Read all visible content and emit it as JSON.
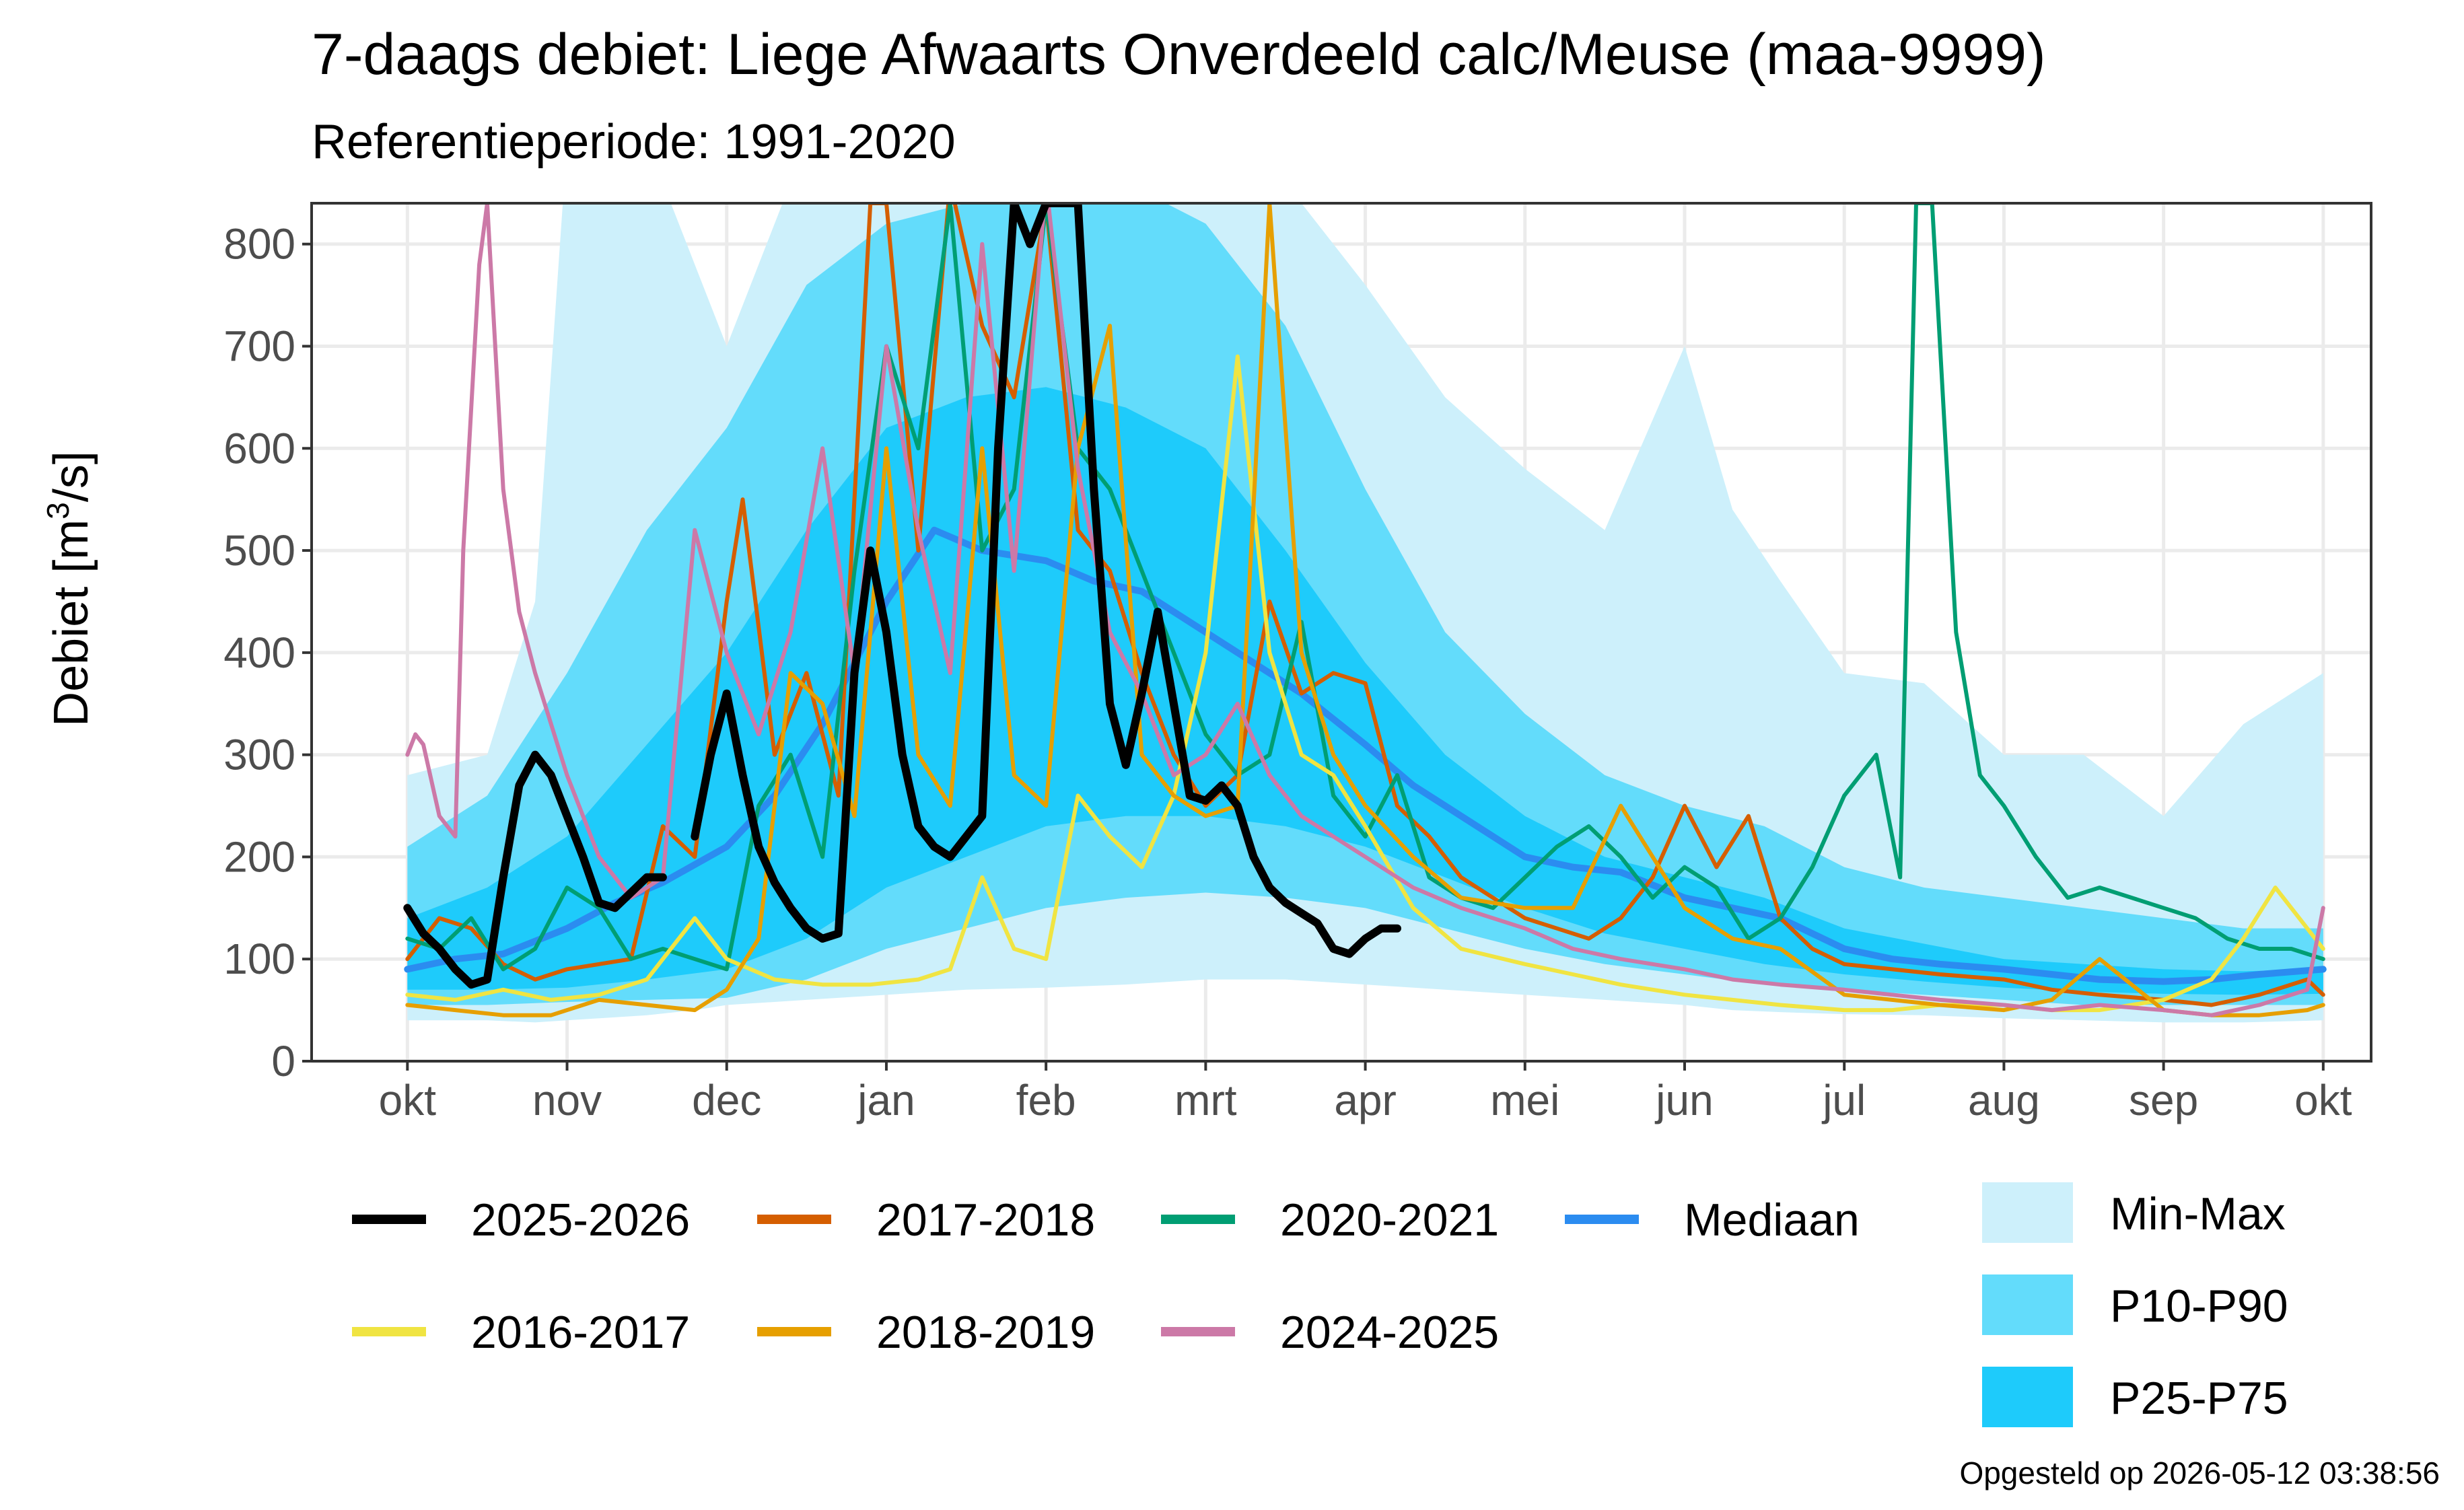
{
  "chart_data": {
    "type": "line",
    "title": "7-daags debiet: Liege Afwaarts Onverdeeld calc/Meuse (maa-9999)",
    "subtitle": "Referentieperiode: 1991-2020",
    "ylabel_prefix": "Debiet [m",
    "ylabel_sup": "3",
    "ylabel_suffix": "/s]",
    "xlabel": "",
    "ylim": [
      0,
      840
    ],
    "xlim": [
      -0.6,
      12.3
    ],
    "y_ticks": [
      "0",
      "100",
      "200",
      "300",
      "400",
      "500",
      "600",
      "700",
      "800"
    ],
    "x_tick_labels": [
      "okt",
      "nov",
      "dec",
      "jan",
      "feb",
      "mrt",
      "apr",
      "mei",
      "jun",
      "jul",
      "aug",
      "sep",
      "okt"
    ],
    "grid": true,
    "legend_position": "bottom",
    "footer": "Opgesteld op 2026-05-12 03:38:56",
    "x_unit": "months since 1 okt",
    "bands": [
      {
        "name": "Min-Max",
        "color": "#cdf0fb",
        "x": [
          0,
          0.5,
          0.8,
          1,
          1.5,
          1.8,
          2,
          2.5,
          3,
          3.5,
          4,
          4.5,
          5,
          5.5,
          6,
          6.5,
          7,
          7.5,
          8,
          8.3,
          8.6,
          9,
          9.5,
          10,
          10.5,
          11,
          11.5,
          12
        ],
        "lower": [
          40,
          40,
          38,
          40,
          45,
          50,
          55,
          60,
          65,
          70,
          72,
          75,
          80,
          80,
          75,
          70,
          65,
          60,
          55,
          50,
          48,
          46,
          45,
          42,
          40,
          38,
          38,
          40
        ],
        "upper": [
          280,
          300,
          450,
          900,
          900,
          780,
          700,
          900,
          900,
          900,
          900,
          900,
          900,
          860,
          760,
          650,
          580,
          520,
          700,
          540,
          470,
          380,
          370,
          300,
          300,
          240,
          330,
          380
        ]
      },
      {
        "name": "P10-P90",
        "color": "#63dcfb",
        "x": [
          0,
          0.5,
          1,
          1.5,
          2,
          2.5,
          3,
          3.5,
          4,
          4.5,
          5,
          5.5,
          6,
          6.5,
          7,
          7.5,
          8,
          8.5,
          9,
          9.5,
          10,
          10.5,
          11,
          11.5,
          12
        ],
        "lower": [
          55,
          55,
          58,
          60,
          62,
          80,
          110,
          130,
          150,
          160,
          165,
          160,
          150,
          130,
          110,
          95,
          85,
          75,
          70,
          65,
          60,
          55,
          55,
          55,
          55
        ],
        "upper": [
          210,
          260,
          380,
          520,
          620,
          760,
          820,
          840,
          860,
          860,
          820,
          720,
          560,
          420,
          340,
          280,
          250,
          230,
          190,
          170,
          160,
          150,
          140,
          130,
          130
        ]
      },
      {
        "name": "P25-P75",
        "color": "#1ecbfb",
        "x": [
          0,
          0.5,
          1,
          1.5,
          2,
          2.5,
          3,
          3.5,
          4,
          4.5,
          5,
          5.5,
          6,
          6.5,
          7,
          7.5,
          8,
          8.5,
          9,
          9.5,
          10,
          10.5,
          11,
          11.5,
          12
        ],
        "lower": [
          70,
          70,
          72,
          80,
          90,
          120,
          170,
          200,
          230,
          240,
          240,
          230,
          210,
          180,
          150,
          125,
          110,
          95,
          85,
          78,
          72,
          68,
          66,
          65,
          66
        ],
        "upper": [
          140,
          170,
          220,
          310,
          400,
          520,
          620,
          650,
          660,
          640,
          600,
          500,
          390,
          300,
          240,
          200,
          180,
          160,
          130,
          115,
          100,
          95,
          90,
          88,
          90
        ]
      }
    ],
    "series": [
      {
        "name": "Mediaan",
        "color": "#2b8cf0",
        "width": 10,
        "x": [
          0,
          0.3,
          0.6,
          1,
          1.3,
          1.6,
          2,
          2.3,
          2.6,
          3,
          3.3,
          3.6,
          4,
          4.3,
          4.6,
          5,
          5.3,
          5.6,
          6,
          6.3,
          6.6,
          7,
          7.3,
          7.6,
          8,
          8.3,
          8.6,
          9,
          9.3,
          9.6,
          10,
          10.3,
          10.6,
          11,
          11.3,
          11.6,
          12
        ],
        "y": [
          90,
          100,
          105,
          130,
          155,
          175,
          210,
          260,
          330,
          450,
          520,
          500,
          490,
          470,
          460,
          420,
          390,
          360,
          310,
          270,
          240,
          200,
          190,
          185,
          160,
          150,
          140,
          110,
          100,
          95,
          90,
          85,
          80,
          78,
          80,
          85,
          90
        ]
      },
      {
        "name": "2017-2018",
        "color": "#d55e00",
        "width": 6,
        "x": [
          0,
          0.2,
          0.4,
          0.6,
          0.8,
          1,
          1.2,
          1.4,
          1.6,
          1.8,
          2,
          2.1,
          2.3,
          2.5,
          2.7,
          2.9,
          3,
          3.2,
          3.4,
          3.6,
          3.8,
          4,
          4.2,
          4.4,
          4.6,
          4.8,
          5,
          5.2,
          5.4,
          5.6,
          5.8,
          6,
          6.2,
          6.4,
          6.6,
          6.8,
          7,
          7.2,
          7.4,
          7.6,
          7.8,
          8,
          8.2,
          8.4,
          8.6,
          8.8,
          9,
          9.3,
          9.6,
          10,
          10.3,
          10.6,
          11,
          11.3,
          11.6,
          11.9,
          12
        ],
        "y": [
          100,
          140,
          130,
          95,
          80,
          90,
          95,
          100,
          230,
          200,
          450,
          550,
          300,
          380,
          260,
          840,
          840,
          500,
          860,
          720,
          650,
          840,
          520,
          480,
          380,
          300,
          250,
          280,
          450,
          360,
          380,
          370,
          250,
          220,
          180,
          160,
          140,
          130,
          120,
          140,
          180,
          250,
          190,
          240,
          140,
          110,
          95,
          90,
          85,
          80,
          70,
          65,
          60,
          55,
          65,
          80,
          65
        ]
      },
      {
        "name": "2020-2021",
        "color": "#009e73",
        "width": 6,
        "x": [
          0,
          0.2,
          0.4,
          0.6,
          0.8,
          1,
          1.2,
          1.4,
          1.6,
          1.8,
          2,
          2.2,
          2.4,
          2.6,
          2.8,
          3,
          3.2,
          3.4,
          3.6,
          3.8,
          4,
          4.2,
          4.4,
          4.6,
          4.8,
          5,
          5.2,
          5.4,
          5.6,
          5.8,
          6,
          6.2,
          6.4,
          6.6,
          6.8,
          7,
          7.2,
          7.4,
          7.6,
          7.8,
          8,
          8.2,
          8.4,
          8.6,
          8.8,
          9,
          9.2,
          9.35,
          9.45,
          9.55,
          9.7,
          9.85,
          10,
          10.2,
          10.4,
          10.6,
          10.8,
          11,
          11.2,
          11.4,
          11.6,
          11.8,
          12
        ],
        "y": [
          120,
          110,
          140,
          90,
          110,
          170,
          150,
          100,
          110,
          100,
          90,
          250,
          300,
          200,
          480,
          700,
          600,
          840,
          500,
          560,
          840,
          600,
          560,
          480,
          400,
          320,
          280,
          300,
          430,
          260,
          220,
          280,
          180,
          160,
          150,
          180,
          210,
          230,
          200,
          160,
          190,
          170,
          120,
          140,
          190,
          260,
          300,
          180,
          840,
          840,
          420,
          280,
          250,
          200,
          160,
          170,
          160,
          150,
          140,
          120,
          110,
          110,
          100
        ]
      },
      {
        "name": "2016-2017",
        "color": "#f0e442",
        "width": 6,
        "x": [
          0,
          0.3,
          0.6,
          0.9,
          1.2,
          1.5,
          1.8,
          2,
          2.3,
          2.6,
          2.9,
          3.2,
          3.4,
          3.6,
          3.8,
          4,
          4.2,
          4.4,
          4.6,
          4.8,
          5,
          5.2,
          5.4,
          5.6,
          5.8,
          6,
          6.3,
          6.6,
          7,
          7.3,
          7.6,
          8,
          8.3,
          8.6,
          9,
          9.3,
          9.6,
          10,
          10.3,
          10.6,
          11,
          11.3,
          11.5,
          11.7,
          11.9,
          12
        ],
        "y": [
          65,
          60,
          70,
          60,
          65,
          80,
          140,
          100,
          80,
          75,
          75,
          80,
          90,
          180,
          110,
          100,
          260,
          220,
          190,
          260,
          400,
          690,
          400,
          300,
          280,
          230,
          150,
          110,
          95,
          85,
          75,
          65,
          60,
          55,
          50,
          50,
          55,
          55,
          50,
          50,
          60,
          80,
          120,
          170,
          130,
          110
        ]
      },
      {
        "name": "2018-2019",
        "color": "#e69f00",
        "width": 6,
        "x": [
          0,
          0.3,
          0.6,
          0.9,
          1.2,
          1.5,
          1.8,
          2,
          2.2,
          2.4,
          2.6,
          2.8,
          3,
          3.2,
          3.4,
          3.6,
          3.8,
          4,
          4.2,
          4.4,
          4.6,
          4.8,
          5,
          5.2,
          5.4,
          5.6,
          5.8,
          6,
          6.3,
          6.6,
          7,
          7.3,
          7.6,
          8,
          8.3,
          8.6,
          9,
          9.3,
          9.6,
          10,
          10.3,
          10.6,
          11,
          11.3,
          11.6,
          11.9,
          12
        ],
        "y": [
          55,
          50,
          45,
          45,
          60,
          55,
          50,
          70,
          120,
          380,
          350,
          240,
          600,
          300,
          250,
          600,
          280,
          250,
          600,
          720,
          300,
          260,
          240,
          250,
          840,
          400,
          300,
          250,
          200,
          160,
          150,
          150,
          250,
          150,
          120,
          110,
          65,
          60,
          55,
          50,
          60,
          100,
          50,
          45,
          45,
          50,
          55
        ]
      },
      {
        "name": "2024-2025",
        "color": "#cc79a7",
        "width": 6,
        "x": [
          0,
          0.05,
          0.1,
          0.2,
          0.3,
          0.35,
          0.45,
          0.5,
          0.6,
          0.7,
          0.8,
          1,
          1.2,
          1.4,
          1.6,
          1.8,
          2,
          2.2,
          2.4,
          2.6,
          2.8,
          3,
          3.2,
          3.4,
          3.6,
          3.8,
          4,
          4.2,
          4.4,
          4.6,
          4.8,
          5,
          5.2,
          5.4,
          5.6,
          5.8,
          6,
          6.3,
          6.6,
          7,
          7.3,
          7.6,
          8,
          8.3,
          8.6,
          9,
          9.3,
          9.6,
          10,
          10.3,
          10.6,
          11,
          11.3,
          11.6,
          11.9,
          12
        ],
        "y": [
          300,
          320,
          310,
          240,
          220,
          500,
          780,
          840,
          560,
          440,
          380,
          280,
          200,
          160,
          180,
          520,
          400,
          320,
          420,
          600,
          380,
          700,
          520,
          380,
          800,
          480,
          860,
          580,
          420,
          360,
          280,
          300,
          350,
          280,
          240,
          220,
          200,
          170,
          150,
          130,
          110,
          100,
          90,
          80,
          75,
          70,
          65,
          60,
          55,
          50,
          55,
          50,
          45,
          55,
          70,
          150
        ]
      },
      {
        "name": "2025-2026",
        "color": "#000000",
        "width": 12,
        "x": [
          0,
          0.1,
          0.2,
          0.3,
          0.4,
          0.5,
          0.6,
          0.7,
          0.8,
          0.9,
          1,
          1.1,
          1.2,
          1.3,
          1.4,
          1.5,
          1.6,
          1.7,
          1.8,
          1.9,
          2,
          2.1,
          2.2,
          2.3,
          2.4,
          2.5,
          2.6,
          2.7,
          2.8,
          2.9,
          3,
          3.1,
          3.2,
          3.3,
          3.4,
          3.5,
          3.6,
          3.7,
          3.8,
          3.9,
          4,
          4.1,
          4.2,
          4.3,
          4.4,
          4.5,
          4.6,
          4.7,
          4.8,
          4.9,
          5,
          5.1,
          5.2,
          5.3,
          5.4,
          5.5,
          5.6,
          5.7,
          5.8,
          5.9,
          6,
          6.1,
          6.2,
          6.3,
          6.4,
          6.5,
          6.6,
          6.7,
          6.8,
          6.9,
          7,
          7.1,
          7.2
        ],
        "y": [
          150,
          125,
          110,
          90,
          75,
          80,
          180,
          270,
          300,
          280,
          240,
          200,
          155,
          150,
          165,
          180,
          180,
          null,
          220,
          300,
          360,
          280,
          210,
          175,
          150,
          130,
          120,
          125,
          380,
          500,
          420,
          300,
          230,
          210,
          200,
          220,
          240,
          600,
          840,
          800,
          840,
          840,
          840,
          560,
          350,
          290,
          360,
          440,
          350,
          260,
          255,
          270,
          250,
          200,
          170,
          155,
          145,
          135,
          110,
          105,
          120,
          130,
          130,
          null,
          null,
          null,
          null,
          null,
          null,
          null,
          null,
          null,
          null
        ]
      }
    ]
  },
  "legend": {
    "lines": [
      {
        "label": "2025-2026",
        "color": "#000000"
      },
      {
        "label": "2017-2018",
        "color": "#d55e00"
      },
      {
        "label": "2020-2021",
        "color": "#009e73"
      },
      {
        "label": "Mediaan",
        "color": "#2b8cf0"
      },
      {
        "label": "2016-2017",
        "color": "#f0e442"
      },
      {
        "label": "2018-2019",
        "color": "#e69f00"
      },
      {
        "label": "2024-2025",
        "color": "#cc79a7"
      }
    ],
    "fills": [
      {
        "label": "Min-Max",
        "color": "#cdf0fb"
      },
      {
        "label": "P10-P90",
        "color": "#63dcfb"
      },
      {
        "label": "P25-P75",
        "color": "#1ecbfb"
      }
    ]
  }
}
